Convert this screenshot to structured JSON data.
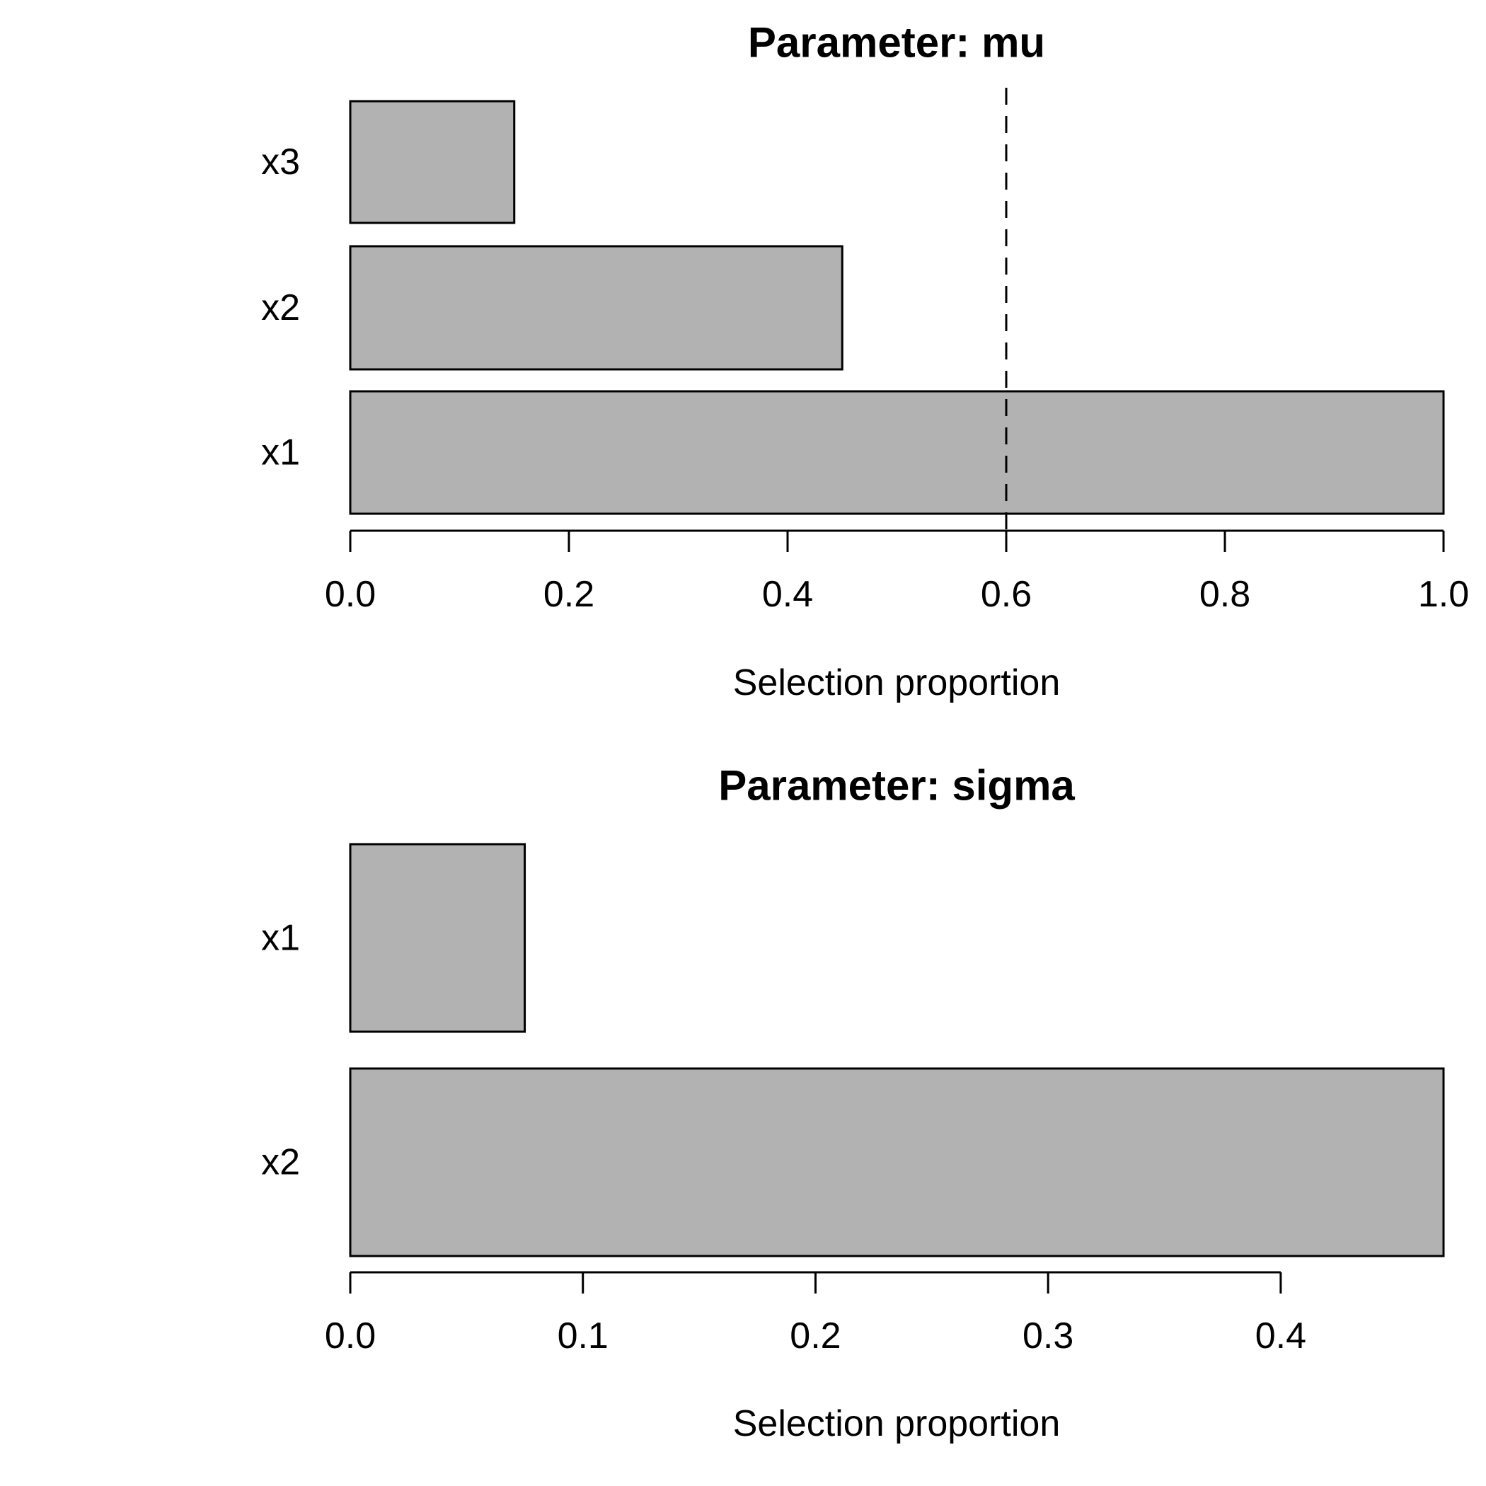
{
  "page": {
    "background": "#ffffff",
    "description": "Two horizontal barplots of selection proportions"
  },
  "chart_data": [
    {
      "type": "bar",
      "orientation": "horizontal",
      "title": "Parameter: mu",
      "xlabel": "Selection proportion",
      "categories": [
        "x3",
        "x2",
        "x1"
      ],
      "values": [
        0.15,
        0.45,
        1.0
      ],
      "xlim": [
        0,
        1.0
      ],
      "xticks": [
        0,
        0.2,
        0.4,
        0.6,
        0.8,
        1.0
      ],
      "xtick_labels": [
        "0.0",
        "0.2",
        "0.4",
        "0.6",
        "0.8",
        "1.0"
      ],
      "threshold": 0.6,
      "threshold_style": "dashed",
      "bar_fill": "#b2b2b2",
      "bar_stroke": "#000000",
      "grid": false,
      "legend": false
    },
    {
      "type": "bar",
      "orientation": "horizontal",
      "title": "Parameter: sigma",
      "xlabel": "Selection proportion",
      "categories": [
        "x1",
        "x2"
      ],
      "values": [
        0.075,
        0.47
      ],
      "xlim": [
        0,
        0.47
      ],
      "xticks": [
        0,
        0.1,
        0.2,
        0.3,
        0.4
      ],
      "xtick_labels": [
        "0.0",
        "0.1",
        "0.2",
        "0.3",
        "0.4"
      ],
      "threshold": null,
      "threshold_style": null,
      "bar_fill": "#b2b2b2",
      "bar_stroke": "#000000",
      "grid": false,
      "legend": false
    }
  ]
}
